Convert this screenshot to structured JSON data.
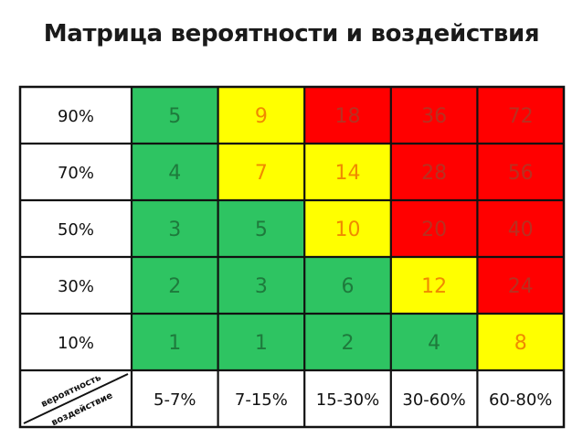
{
  "title": "Матрица вероятности и воздействия",
  "colors": {
    "green": "#2ec462",
    "yellow": "#ffff00",
    "red": "#ff0000",
    "text_green": "#1e7a3c",
    "text_yellow": "#f08a00",
    "text_red": "#b83020",
    "grid": "#111111"
  },
  "chart_data": {
    "type": "heatmap",
    "title": "Матрица вероятности и воздействия",
    "corner_labels": {
      "top": "вероятность",
      "bottom": "воздействие"
    },
    "rows": [
      "90%",
      "70%",
      "50%",
      "30%",
      "10%"
    ],
    "columns": [
      "5-7%",
      "7-15%",
      "15-30%",
      "30-60%",
      "60-80%"
    ],
    "values": [
      [
        5,
        9,
        18,
        36,
        72
      ],
      [
        4,
        7,
        14,
        28,
        56
      ],
      [
        3,
        5,
        10,
        20,
        40
      ],
      [
        2,
        3,
        6,
        12,
        24
      ],
      [
        1,
        1,
        2,
        4,
        8
      ]
    ],
    "zones": [
      [
        "green",
        "yellow",
        "red",
        "red",
        "red"
      ],
      [
        "green",
        "yellow",
        "yellow",
        "red",
        "red"
      ],
      [
        "green",
        "green",
        "yellow",
        "red",
        "red"
      ],
      [
        "green",
        "green",
        "green",
        "yellow",
        "red"
      ],
      [
        "green",
        "green",
        "green",
        "green",
        "yellow"
      ]
    ]
  }
}
